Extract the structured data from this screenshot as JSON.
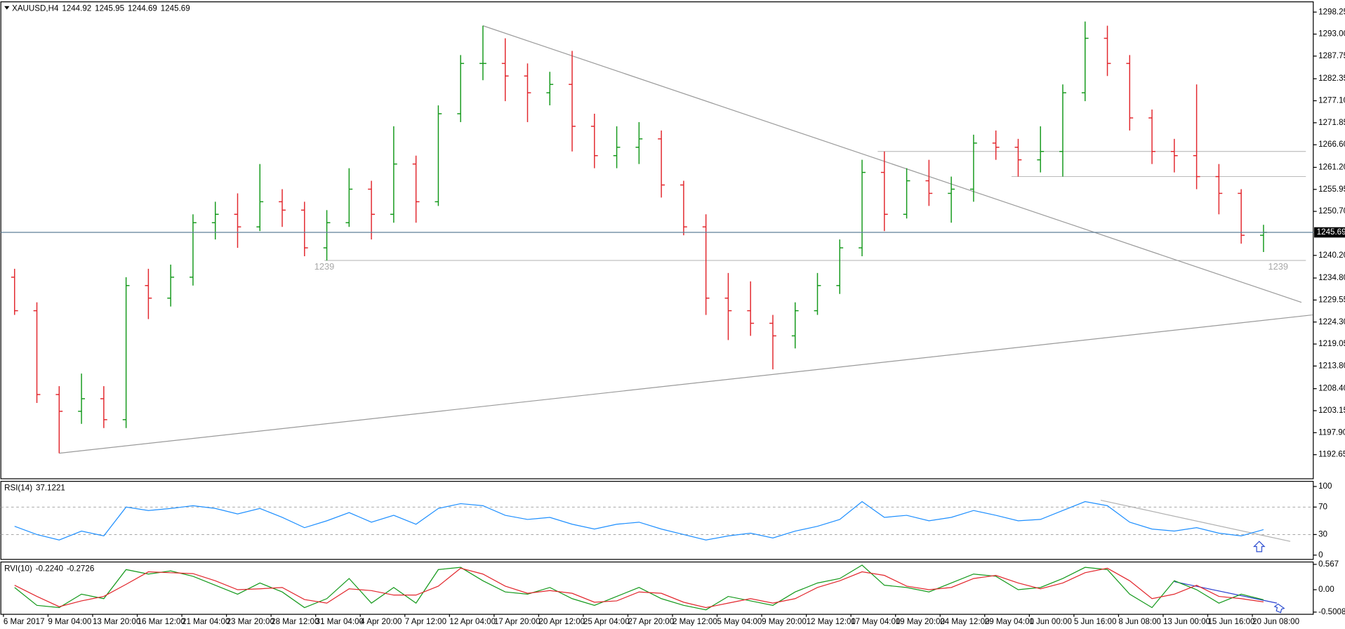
{
  "chart_data": [
    {
      "type": "ohlc",
      "title": "XAUUSD,H4",
      "quote": [
        1244.92,
        1245.95,
        1244.69,
        1245.69
      ],
      "categories": [
        "6 Mar 2017",
        null,
        "9 Mar 04:00",
        null,
        "13 Mar 20:00",
        null,
        "16 Mar 12:00",
        null,
        "21 Mar 04:00",
        null,
        "23 Mar 20:00",
        null,
        "28 Mar 12:00",
        null,
        "31 Mar 04:00",
        null,
        "4 Apr 20:00",
        null,
        "7 Apr 12:00",
        null,
        "12 Apr 04:00",
        null,
        "17 Apr 20:00",
        null,
        "20 Apr 12:00",
        null,
        "25 Apr 04:00",
        null,
        "27 Apr 20:00",
        null,
        "2 May 12:00",
        null,
        "5 May 04:00",
        null,
        "9 May 20:00",
        null,
        "12 May 12:00",
        null,
        "17 May 04:00",
        null,
        "19 May 20:00",
        null,
        "24 May 12:00",
        null,
        "29 May 04:00",
        null,
        "1 Jun 00:00",
        null,
        "5 Jun 16:00",
        null,
        "8 Jun 08:00",
        null,
        "13 Jun 00:00",
        null,
        "15 Jun 16:00",
        null,
        "20 Jun 08:00"
      ],
      "open": [
        1235,
        1227,
        1207,
        1203,
        1206,
        1201,
        1233,
        1230,
        1235,
        1248,
        1250,
        1247,
        1253,
        1251,
        1242,
        1248,
        1256,
        1250,
        1262,
        1253,
        1274,
        1286,
        1286,
        1283,
        1279,
        1281,
        1271,
        1264,
        1266,
        1268,
        1257,
        1247,
        1230,
        1227,
        1224,
        1221,
        1227,
        1233,
        1242,
        1260,
        1250,
        1258,
        1255,
        1256,
        1267,
        1266,
        1263,
        1265,
        1279,
        1292,
        1286,
        1273,
        1265,
        1264,
        1259,
        1255,
        1245
      ],
      "high": [
        1237,
        1229,
        1209,
        1212,
        1209,
        1235,
        1237,
        1238,
        1250,
        1253,
        1255,
        1262,
        1256,
        1253,
        1251,
        1261,
        1258,
        1271,
        1264,
        1276,
        1288,
        1295,
        1292,
        1286,
        1284,
        1289,
        1274,
        1271,
        1272,
        1270,
        1258,
        1250,
        1236,
        1234,
        1226,
        1229,
        1236,
        1244,
        1263,
        1265,
        1261,
        1263,
        1259,
        1269,
        1270,
        1268,
        1271,
        1281,
        1296,
        1295,
        1288,
        1275,
        1268,
        1281,
        1262,
        1256,
        1247.5
      ],
      "low": [
        1226,
        1205,
        1193,
        1200,
        1199,
        1199,
        1225,
        1228,
        1233,
        1244,
        1242,
        1246,
        1247,
        1240,
        1239,
        1247,
        1244,
        1248,
        1248,
        1252,
        1272,
        1282,
        1277,
        1272,
        1276,
        1265,
        1261,
        1261,
        1262,
        1254,
        1245,
        1226,
        1220,
        1221,
        1213,
        1218,
        1226,
        1231,
        1240,
        1246,
        1249,
        1252,
        1248,
        1253,
        1263,
        1259,
        1260,
        1259,
        1277,
        1283,
        1270,
        1262,
        1260,
        1256,
        1250,
        1243,
        1241
      ],
      "close": [
        1227,
        1207,
        1203,
        1206,
        1201,
        1233,
        1230,
        1235,
        1248,
        1250,
        1247,
        1253,
        1251,
        1242,
        1248,
        1256,
        1250,
        1262,
        1253,
        1274,
        1286,
        1286,
        1283,
        1279,
        1281,
        1271,
        1264,
        1266,
        1268,
        1257,
        1247,
        1230,
        1227,
        1224,
        1221,
        1227,
        1233,
        1242,
        1260,
        1250,
        1258,
        1255,
        1256,
        1267,
        1266,
        1263,
        1265,
        1279,
        1292,
        1286,
        1273,
        1265,
        1264,
        1259,
        1255,
        1245,
        1245.69
      ],
      "up_color": "#14991b",
      "down_color": "#e2262c",
      "ylim": [
        1186.9,
        1300.7
      ],
      "yticks": [
        1298.25,
        {
          "value": 1293,
          "label": "1293.00"
        },
        1287.75,
        1282.35,
        {
          "value": 1277.1,
          "label": "1277.10"
        },
        1271.85,
        {
          "value": 1266.6,
          "label": "1266.60"
        },
        {
          "value": 1261.2,
          "label": "1261.20"
        },
        1255.95,
        {
          "value": 1250.7,
          "label": "1250.70"
        },
        {
          "value": 1240.2,
          "label": "1240.20"
        },
        {
          "value": 1234.8,
          "label": "1234.80"
        },
        1229.55,
        {
          "value": 1224.3,
          "label": "1224.30"
        },
        1219.05,
        {
          "value": 1213.8,
          "label": "1213.80"
        },
        {
          "value": 1208.4,
          "label": "1208.40"
        },
        1203.15,
        {
          "value": 1197.9,
          "label": "1197.90"
        },
        1192.65
      ],
      "current_price": 1245.69,
      "price_line_color": "#5f7f99",
      "levels": [
        {
          "value": 1239,
          "x": [
            13.9,
            57.9
          ],
          "show_label": true
        },
        {
          "value": 1265,
          "x": [
            38.7,
            57.9
          ]
        },
        {
          "value": 1259,
          "x": [
            44.7,
            57.9
          ]
        }
      ],
      "trendlines": [
        {
          "x": [
            21,
            57.7
          ],
          "y": [
            1295,
            1229
          ]
        },
        {
          "x": [
            2,
            58.2
          ],
          "y": [
            1193,
            1226
          ]
        }
      ],
      "line_color": "#9a9a9a"
    },
    {
      "type": "line",
      "title": "RSI(14)",
      "current": [
        37.1221
      ],
      "series": [
        {
          "color": "#1e8fff",
          "values": [
            42,
            30,
            22,
            35,
            28,
            70,
            65,
            68,
            72,
            68,
            60,
            68,
            55,
            40,
            50,
            62,
            48,
            58,
            45,
            68,
            75,
            72,
            58,
            52,
            55,
            45,
            38,
            45,
            48,
            38,
            30,
            22,
            28,
            32,
            25,
            35,
            42,
            52,
            78,
            55,
            58,
            50,
            55,
            65,
            58,
            50,
            52,
            65,
            78,
            72,
            48,
            38,
            35,
            40,
            32,
            28,
            37.1221
          ]
        }
      ],
      "ylim": [
        -6.25,
        107.5
      ],
      "yticks": [
        100,
        70,
        30,
        0
      ],
      "levels": [
        70,
        30
      ],
      "trendlines": [
        {
          "x": [
            48.7,
            57.2
          ],
          "y": [
            80,
            20
          ]
        }
      ],
      "line_color": "#b0b0b0"
    },
    {
      "type": "line",
      "title": "RVI(10)",
      "current": [
        {
          "value": -0.224,
          "label": "-0.2240"
        },
        -0.2726
      ],
      "series": [
        {
          "color": "#14991b",
          "values": [
            0.05,
            -0.35,
            -0.4,
            -0.1,
            -0.2,
            0.45,
            0.35,
            0.42,
            0.3,
            0.1,
            -0.1,
            0.15,
            -0.05,
            -0.4,
            -0.2,
            0.25,
            -0.3,
            0.05,
            -0.3,
            0.45,
            0.5,
            0.2,
            -0.05,
            -0.1,
            0.05,
            -0.2,
            -0.35,
            -0.15,
            0.05,
            -0.2,
            -0.35,
            -0.45,
            -0.15,
            -0.25,
            -0.35,
            -0.05,
            0.15,
            0.25,
            0.55,
            0.1,
            0.05,
            -0.05,
            0.15,
            0.35,
            0.3,
            0.0,
            0.05,
            0.25,
            0.5,
            0.45,
            -0.1,
            -0.4,
            0.2,
            0.0,
            -0.3,
            -0.1,
            -0.224
          ]
        },
        {
          "color": "#e2262c",
          "values": [
            0.1,
            -0.15,
            -0.38,
            -0.25,
            -0.15,
            0.12,
            0.4,
            0.38,
            0.36,
            0.2,
            0.0,
            0.02,
            0.05,
            -0.22,
            -0.3,
            0.02,
            -0.02,
            -0.12,
            -0.12,
            0.08,
            0.48,
            0.35,
            0.08,
            -0.08,
            -0.02,
            -0.08,
            -0.28,
            -0.25,
            -0.05,
            -0.08,
            -0.28,
            -0.4,
            -0.3,
            -0.2,
            -0.3,
            -0.2,
            0.05,
            0.2,
            0.4,
            0.32,
            0.08,
            0.0,
            0.05,
            0.25,
            0.32,
            0.15,
            0.02,
            0.15,
            0.38,
            0.48,
            0.2,
            -0.2,
            -0.1,
            0.1,
            -0.15,
            -0.2,
            -0.2726
          ]
        }
      ],
      "ylim": [
        -0.55,
        0.62
      ],
      "yticks": [
        0.567,
        {
          "value": 0,
          "label": "0.00"
        },
        -0.5008
      ],
      "trendlines": [
        {
          "x": [
            52,
            56.6
          ],
          "y": [
            0.18,
            -0.3
          ]
        }
      ],
      "line_color": "#2a3fd0"
    }
  ]
}
